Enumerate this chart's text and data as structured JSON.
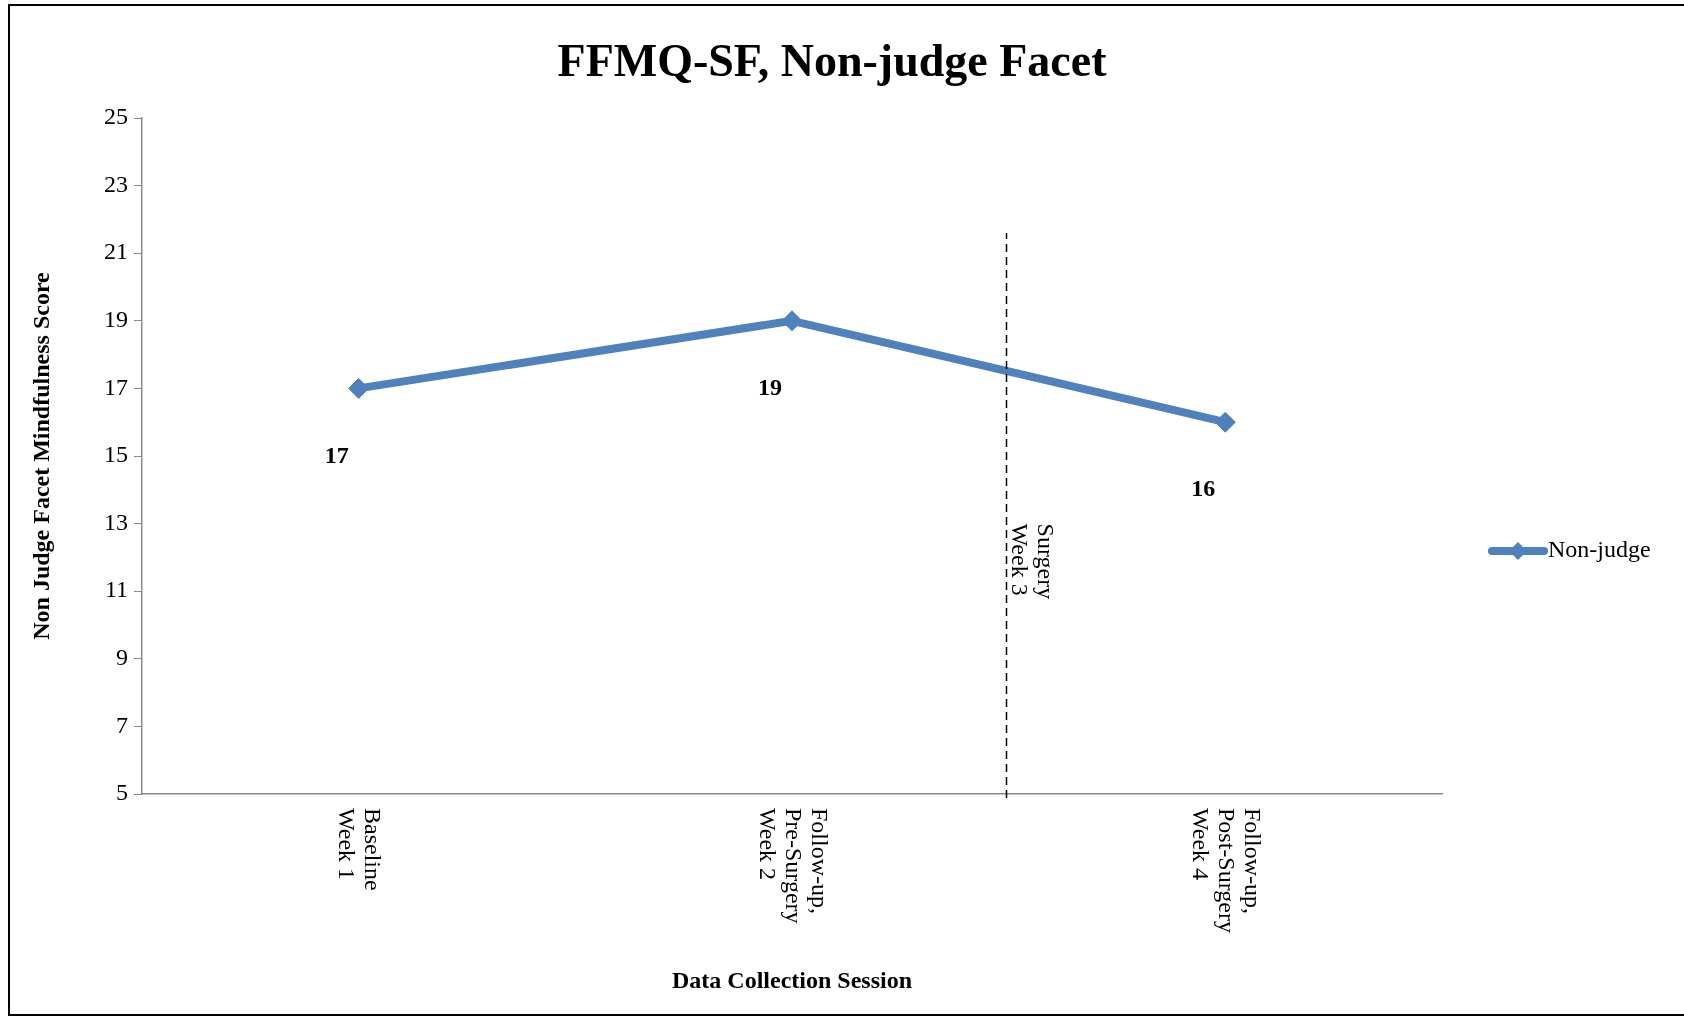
{
  "chart_data": {
    "type": "line",
    "title": "FFMQ-SF, Non-judge Facet",
    "xlabel": "Data Collection Session",
    "ylabel": "Non Judge Facet Mindfulness Score",
    "categories": [
      "Baseline\nWeek 1",
      "Follow-up,\nPre-Surgery\nWeek 2",
      "Follow-up,\nPost-Surgery\nWeek 4"
    ],
    "series": [
      {
        "name": "Non-judge",
        "color": "#4f81bd",
        "values": [
          17,
          19,
          16
        ]
      }
    ],
    "ylim": [
      5,
      25
    ],
    "yticks": [
      5,
      7,
      9,
      11,
      13,
      15,
      17,
      19,
      21,
      23,
      25
    ],
    "annotations": [
      "Surgery\nWeek 3"
    ],
    "data_labels": true,
    "grid": false,
    "legend": "right",
    "marker": "diamond",
    "line_style": "solid"
  }
}
